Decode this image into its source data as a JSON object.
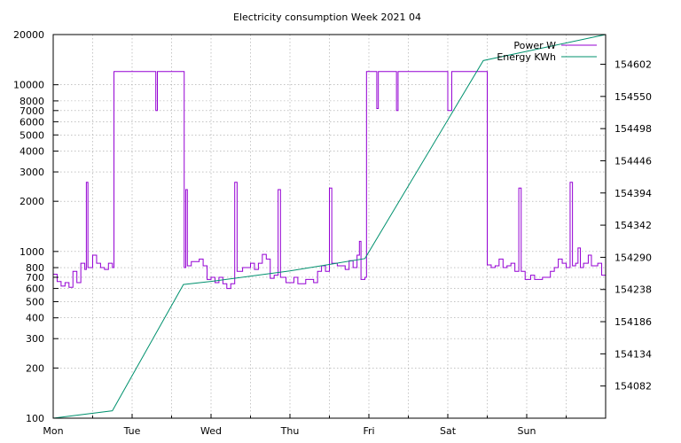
{
  "chart_data": {
    "type": "line",
    "title": "Electricity consumption Week 2021 04",
    "x_tick_labels": [
      "Mon",
      "Tue",
      "Wed",
      "Thu",
      "Fri",
      "Sat",
      "Sun"
    ],
    "y_left": {
      "scale": "log",
      "range": [
        100,
        20000
      ],
      "ticks": [
        100,
        200,
        300,
        400,
        500,
        600,
        700,
        800,
        1000,
        2000,
        3000,
        4000,
        5000,
        6000,
        7000,
        8000,
        10000,
        20000
      ]
    },
    "y_right": {
      "scale": "linear",
      "range": [
        154030,
        154650
      ],
      "ticks": [
        154082,
        154134,
        154186,
        154238,
        154290,
        154342,
        154394,
        154446,
        154498,
        154550,
        154602
      ]
    },
    "grid": true,
    "legend_position": "top-right",
    "series": [
      {
        "name": "Power W",
        "axis": "left",
        "color": "#9400d3",
        "points": [
          [
            0,
            730
          ],
          [
            0.05,
            660
          ],
          [
            0.1,
            620
          ],
          [
            0.15,
            650
          ],
          [
            0.2,
            610
          ],
          [
            0.25,
            760
          ],
          [
            0.3,
            650
          ],
          [
            0.35,
            850
          ],
          [
            0.4,
            780
          ],
          [
            0.42,
            2600
          ],
          [
            0.44,
            800
          ],
          [
            0.5,
            950
          ],
          [
            0.55,
            850
          ],
          [
            0.6,
            800
          ],
          [
            0.65,
            780
          ],
          [
            0.7,
            850
          ],
          [
            0.75,
            800
          ],
          [
            0.77,
            12000
          ],
          [
            1.0,
            12000
          ],
          [
            1.2,
            12000
          ],
          [
            1.3,
            7000
          ],
          [
            1.32,
            12000
          ],
          [
            1.6,
            12000
          ],
          [
            1.65,
            12000
          ],
          [
            1.66,
            800
          ],
          [
            1.68,
            2350
          ],
          [
            1.7,
            820
          ],
          [
            1.75,
            870
          ],
          [
            1.85,
            900
          ],
          [
            1.9,
            820
          ],
          [
            1.95,
            680
          ],
          [
            2.0,
            700
          ],
          [
            2.05,
            650
          ],
          [
            2.1,
            700
          ],
          [
            2.15,
            640
          ],
          [
            2.2,
            600
          ],
          [
            2.25,
            640
          ],
          [
            2.3,
            2600
          ],
          [
            2.33,
            760
          ],
          [
            2.4,
            800
          ],
          [
            2.5,
            850
          ],
          [
            2.55,
            780
          ],
          [
            2.6,
            850
          ],
          [
            2.65,
            960
          ],
          [
            2.7,
            900
          ],
          [
            2.75,
            690
          ],
          [
            2.8,
            720
          ],
          [
            2.85,
            2350
          ],
          [
            2.88,
            700
          ],
          [
            2.95,
            650
          ],
          [
            3.05,
            700
          ],
          [
            3.1,
            640
          ],
          [
            3.2,
            680
          ],
          [
            3.3,
            650
          ],
          [
            3.35,
            760
          ],
          [
            3.4,
            820
          ],
          [
            3.45,
            760
          ],
          [
            3.5,
            2400
          ],
          [
            3.53,
            850
          ],
          [
            3.6,
            820
          ],
          [
            3.7,
            780
          ],
          [
            3.75,
            880
          ],
          [
            3.8,
            800
          ],
          [
            3.85,
            950
          ],
          [
            3.88,
            1150
          ],
          [
            3.9,
            680
          ],
          [
            3.95,
            700
          ],
          [
            3.97,
            12000
          ],
          [
            4.1,
            7200
          ],
          [
            4.12,
            12000
          ],
          [
            4.3,
            12000
          ],
          [
            4.35,
            7000
          ],
          [
            4.37,
            12000
          ],
          [
            4.95,
            12000
          ],
          [
            5.0,
            7000
          ],
          [
            5.05,
            12000
          ],
          [
            5.2,
            12000
          ],
          [
            5.3,
            12000
          ],
          [
            5.48,
            12000
          ],
          [
            5.5,
            830
          ],
          [
            5.55,
            800
          ],
          [
            5.6,
            820
          ],
          [
            5.65,
            900
          ],
          [
            5.7,
            800
          ],
          [
            5.75,
            820
          ],
          [
            5.8,
            850
          ],
          [
            5.85,
            760
          ],
          [
            5.9,
            2400
          ],
          [
            5.93,
            760
          ],
          [
            5.98,
            680
          ],
          [
            6.05,
            720
          ],
          [
            6.1,
            680
          ],
          [
            6.2,
            700
          ],
          [
            6.3,
            760
          ],
          [
            6.35,
            800
          ],
          [
            6.4,
            900
          ],
          [
            6.45,
            850
          ],
          [
            6.5,
            800
          ],
          [
            6.55,
            2600
          ],
          [
            6.58,
            820
          ],
          [
            6.62,
            850
          ],
          [
            6.65,
            1050
          ],
          [
            6.68,
            800
          ],
          [
            6.72,
            850
          ],
          [
            6.78,
            950
          ],
          [
            6.82,
            820
          ],
          [
            6.9,
            850
          ],
          [
            6.95,
            720
          ],
          [
            7.0,
            700
          ]
        ]
      },
      {
        "name": "Energy KWh",
        "axis": "right",
        "color": "#00916e",
        "points": [
          [
            0,
            154030
          ],
          [
            0.75,
            154042
          ],
          [
            1.65,
            154246
          ],
          [
            2.0,
            154251
          ],
          [
            3.0,
            154268
          ],
          [
            3.95,
            154288
          ],
          [
            5.45,
            154608
          ],
          [
            7.0,
            154650
          ]
        ]
      }
    ]
  }
}
